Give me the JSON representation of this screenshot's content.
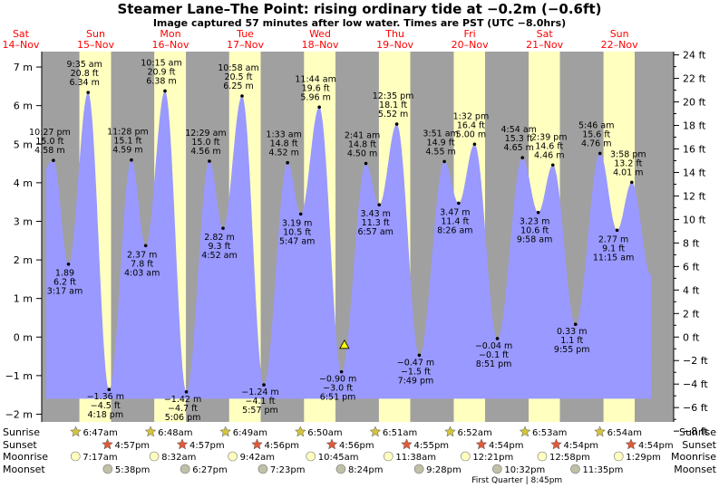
{
  "header": {
    "title": "Steamer Lane–The Point: rising  ordinary tide at −0.2m (−0.6ft)",
    "subtitle": "Image captured 57 minutes after low water. Times are PST (UTC −8.0hrs)"
  },
  "colors": {
    "night": "#a0a0a0",
    "day": "#ffffc0",
    "tide_fill": "#9999ff",
    "day_label": "#ff0000",
    "sun_icon": "#d4c43c",
    "sunset_icon": "#e05a3a",
    "moon_icon": "#ffffc0",
    "moonset_icon": "#c0c0a8",
    "now_marker": "#ffff00"
  },
  "chart_data": {
    "type": "area",
    "title": "Steamer Lane–The Point: rising  ordinary tide at −0.2m (−0.6ft)",
    "y_left_unit": "m",
    "y_left_range": [
      -2.2,
      7.4
    ],
    "y_left_ticks": [
      "−2 m",
      "−1 m",
      "0 m",
      "1 m",
      "2 m",
      "3 m",
      "4 m",
      "5 m",
      "6 m",
      "7 m"
    ],
    "y_right_unit": "ft",
    "y_right_ticks": [
      "−8 ft",
      "−6 ft",
      "−4 ft",
      "−2 ft",
      "0 ft",
      "2 ft",
      "4 ft",
      "6 ft",
      "8 ft",
      "10 ft",
      "12 ft",
      "14 ft",
      "16 ft",
      "18 ft",
      "20 ft",
      "22 ft",
      "24 ft"
    ],
    "grid": false,
    "days": [
      {
        "dow": "Sat",
        "date": "14–Nov"
      },
      {
        "dow": "Sun",
        "date": "15–Nov"
      },
      {
        "dow": "Mon",
        "date": "16–Nov"
      },
      {
        "dow": "Tue",
        "date": "17–Nov"
      },
      {
        "dow": "Wed",
        "date": "18–Nov"
      },
      {
        "dow": "Thu",
        "date": "19–Nov"
      },
      {
        "dow": "Fri",
        "date": "20–Nov"
      },
      {
        "dow": "Sat",
        "date": "21–Nov"
      },
      {
        "dow": "Sun",
        "date": "22–Nov"
      }
    ],
    "tide_events": [
      {
        "time": "3:17 am",
        "day": "15–Nov",
        "ft": "6.2 ft",
        "m": "1.89",
        "type": "low"
      },
      {
        "time": "9:35 am",
        "day": "15–Nov",
        "ft": "20.8 ft",
        "m": "6.34 m",
        "type": "high"
      },
      {
        "time": "4:18 pm",
        "day": "15–Nov",
        "ft": "−4.5 ft",
        "m": "−1.36 m",
        "type": "low"
      },
      {
        "time": "10:27 pm",
        "day": "14–Nov",
        "ft": "15.0 ft",
        "m": "4.58 m",
        "type": "high"
      },
      {
        "time": "4:03 am",
        "day": "16–Nov",
        "ft": "7.8 ft",
        "m": "2.37 m",
        "type": "low"
      },
      {
        "time": "10:15 am",
        "day": "16–Nov",
        "ft": "20.9 ft",
        "m": "6.38 m",
        "type": "high"
      },
      {
        "time": "5:06 pm",
        "day": "16–Nov",
        "ft": "−4.7 ft",
        "m": "−1.42 m",
        "type": "low"
      },
      {
        "time": "11:28 pm",
        "day": "15–Nov",
        "ft": "15.1 ft",
        "m": "4.59 m",
        "type": "high"
      },
      {
        "time": "4:52 am",
        "day": "17–Nov",
        "ft": "9.3 ft",
        "m": "2.82 m",
        "type": "low"
      },
      {
        "time": "10:58 am",
        "day": "17–Nov",
        "ft": "20.5 ft",
        "m": "6.25 m",
        "type": "high"
      },
      {
        "time": "5:57 pm",
        "day": "17–Nov",
        "ft": "−4.1 ft",
        "m": "−1.24 m",
        "type": "low"
      },
      {
        "time": "12:29 am",
        "day": "17–Nov",
        "ft": "15.0 ft",
        "m": "4.56 m",
        "type": "high"
      },
      {
        "time": "5:47 am",
        "day": "18–Nov",
        "ft": "10.5 ft",
        "m": "3.19 m",
        "type": "low"
      },
      {
        "time": "11:44 am",
        "day": "18–Nov",
        "ft": "19.6 ft",
        "m": "5.96 m",
        "type": "high"
      },
      {
        "time": "6:51 pm",
        "day": "18–Nov",
        "ft": "−3.0 ft",
        "m": "−0.90 m",
        "type": "low"
      },
      {
        "time": "1:33 am",
        "day": "18–Nov",
        "ft": "14.8 ft",
        "m": "4.52 m",
        "type": "high"
      },
      {
        "time": "6:57 am",
        "day": "19–Nov",
        "ft": "11.3 ft",
        "m": "3.43 m",
        "type": "low"
      },
      {
        "time": "12:35 pm",
        "day": "19–Nov",
        "ft": "18.1 ft",
        "m": "5.52 m",
        "type": "high"
      },
      {
        "time": "7:49 pm",
        "day": "19–Nov",
        "ft": "−1.5 ft",
        "m": "−0.47 m",
        "type": "low"
      },
      {
        "time": "2:41 am",
        "day": "19–Nov",
        "ft": "14.8 ft",
        "m": "4.50 m",
        "type": "high"
      },
      {
        "time": "8:26 am",
        "day": "20–Nov",
        "ft": "11.4 ft",
        "m": "3.47 m",
        "type": "low"
      },
      {
        "time": "1:32 pm",
        "day": "20–Nov",
        "ft": "16.4 ft",
        "m": "5.00 m",
        "type": "high"
      },
      {
        "time": "8:51 pm",
        "day": "20–Nov",
        "ft": "−0.1 ft",
        "m": "−0.04 m",
        "type": "low"
      },
      {
        "time": "3:51 am",
        "day": "20–Nov",
        "ft": "14.9 ft",
        "m": "4.55 m",
        "type": "high"
      },
      {
        "time": "9:58 am",
        "day": "21–Nov",
        "ft": "10.6 ft",
        "m": "3.23 m",
        "type": "low"
      },
      {
        "time": "2:39 pm",
        "day": "21–Nov",
        "ft": "14.6 ft",
        "m": "4.46 m",
        "type": "high"
      },
      {
        "time": "9:55 pm",
        "day": "21–Nov",
        "ft": "1.1 ft",
        "m": "0.33 m",
        "type": "low"
      },
      {
        "time": "4:54 am",
        "day": "21–Nov",
        "ft": "15.3 ft",
        "m": "4.65 m",
        "type": "high"
      },
      {
        "time": "11:15 am",
        "day": "22–Nov",
        "ft": "9.1 ft",
        "m": "2.77 m",
        "type": "low"
      },
      {
        "time": "3:58 pm",
        "day": "22–Nov",
        "ft": "13.2 ft",
        "m": "4.01 m",
        "type": "high"
      },
      {
        "time": "5:46 am",
        "day": "22–Nov",
        "ft": "15.6 ft",
        "m": "4.76 m",
        "type": "high"
      }
    ],
    "current": {
      "time": "6:51 pm + 57 min",
      "day": "18–Nov",
      "m": -0.2
    },
    "rows": {
      "sunrise_label": "Sunrise",
      "sunset_label": "Sunset",
      "moonrise_label": "Moonrise",
      "moonset_label": "Moonset"
    },
    "sun_moon": [
      {
        "day": "15–Nov",
        "sunrise": "6:47am",
        "sunset": "4:57pm",
        "moonrise": "7:17am",
        "moonset": "5:38pm"
      },
      {
        "day": "16–Nov",
        "sunrise": "6:48am",
        "sunset": "4:57pm",
        "moonrise": "8:32am",
        "moonset": "6:27pm"
      },
      {
        "day": "17–Nov",
        "sunrise": "6:49am",
        "sunset": "4:56pm",
        "moonrise": "9:42am",
        "moonset": "7:23pm"
      },
      {
        "day": "18–Nov",
        "sunrise": "6:50am",
        "sunset": "4:56pm",
        "moonrise": "10:45am",
        "moonset": "8:24pm"
      },
      {
        "day": "19–Nov",
        "sunrise": "6:51am",
        "sunset": "4:55pm",
        "moonrise": "11:38am",
        "moonset": "9:28pm"
      },
      {
        "day": "20–Nov",
        "sunrise": "6:52am",
        "sunset": "4:54pm",
        "moonrise": "12:21pm",
        "moonset": "10:32pm"
      },
      {
        "day": "21–Nov",
        "sunrise": "6:53am",
        "sunset": "4:54pm",
        "moonrise": "12:58pm",
        "moonset": "11:35pm"
      },
      {
        "day": "22–Nov",
        "sunrise": "6:54am",
        "sunset": "4:54pm",
        "moonrise": "1:29pm",
        "moonset": ""
      }
    ],
    "moon_phase": "First Quarter | 8:45pm"
  }
}
